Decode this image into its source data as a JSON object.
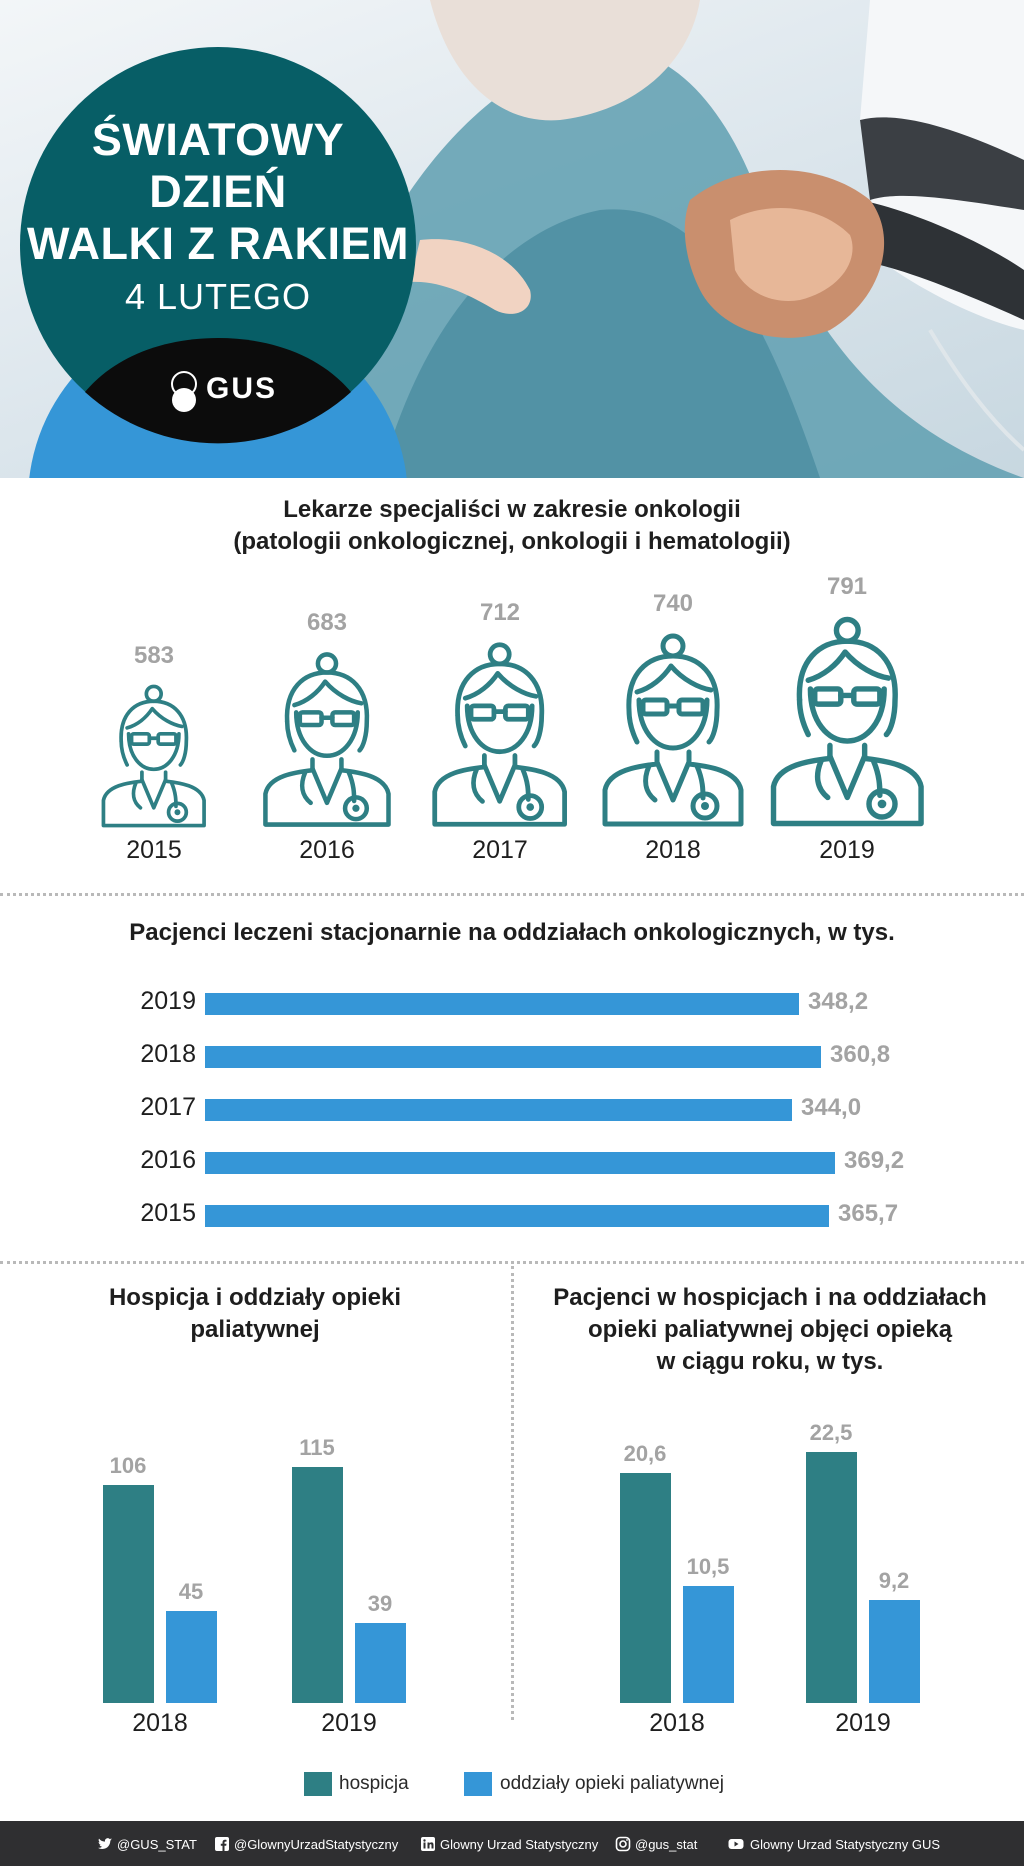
{
  "hero": {
    "title_lines": [
      "ŚWIATOWY",
      "DZIEŃ",
      "WALKI Z RAKIEM"
    ],
    "date": "4 LUTEGO",
    "logo_text": "GUS"
  },
  "colors": {
    "teal": "#2e7f84",
    "blue": "#3596d7",
    "dark_teal": "#075e66",
    "value_gray": "#a3a3a3"
  },
  "chart_data": [
    {
      "type": "bar",
      "title": "Lekarze specjaliści w zakresie onkologii (patologii onkologicznej, onkologii i hematologii)",
      "title_lines": [
        "Lekarze specjaliści w zakresie onkologii",
        "(patologii onkologicznej, onkologii i hematologii)"
      ],
      "categories": [
        "2015",
        "2016",
        "2017",
        "2018",
        "2019"
      ],
      "values": [
        583,
        683,
        712,
        740,
        791
      ],
      "value_labels": [
        "583",
        "683",
        "712",
        "740",
        "791"
      ],
      "marks": "doctor-icons"
    },
    {
      "type": "bar",
      "orientation": "horizontal",
      "title": "Pacjenci leczeni stacjonarnie na oddziałach onkologicznych, w tys.",
      "categories": [
        "2019",
        "2018",
        "2017",
        "2016",
        "2015"
      ],
      "values": [
        348.2,
        360.8,
        344.0,
        369.2,
        365.7
      ],
      "value_labels": [
        "348,2",
        "360,8",
        "344,0",
        "369,2",
        "365,7"
      ],
      "color": "#3596d7"
    },
    {
      "type": "bar",
      "title": "Hospicja i oddziały opieki paliatywnej",
      "title_lines": [
        "Hospicja i oddziały opieki",
        "paliatywnej"
      ],
      "categories": [
        "2018",
        "2019"
      ],
      "series": [
        {
          "name": "hospicja",
          "values": [
            106,
            115
          ],
          "labels": [
            "106",
            "115"
          ],
          "color": "#2e7f84"
        },
        {
          "name": "oddziały opieki paliatywnej",
          "values": [
            45,
            39
          ],
          "labels": [
            "45",
            "39"
          ],
          "color": "#3596d7"
        }
      ]
    },
    {
      "type": "bar",
      "title": "Pacjenci w hospicjach i na oddziałach opieki paliatywnej objęci opieką w ciągu roku, w tys.",
      "title_lines": [
        "Pacjenci w hospicjach i na oddziałach",
        "opieki paliatywnej objęci opieką",
        "w ciągu roku, w tys."
      ],
      "categories": [
        "2018",
        "2019"
      ],
      "series": [
        {
          "name": "hospicja",
          "values": [
            20.6,
            22.5
          ],
          "labels": [
            "20,6",
            "22,5"
          ],
          "color": "#2e7f84"
        },
        {
          "name": "oddziały opieki paliatywnej",
          "values": [
            10.5,
            9.2
          ],
          "labels": [
            "10,5",
            "9,2"
          ],
          "color": "#3596d7"
        }
      ]
    }
  ],
  "legend": [
    {
      "label": "hospicja",
      "color": "#2e7f84"
    },
    {
      "label": "oddziały opieki paliatywnej",
      "color": "#3596d7"
    }
  ],
  "footer": {
    "twitter": "@GUS_STAT",
    "facebook": "@GlownyUrzadStatystyczny",
    "linkedin": "Glowny Urzad Statystyczny",
    "instagram": "@gus_stat",
    "youtube": "Glowny Urzad Statystyczny GUS"
  }
}
